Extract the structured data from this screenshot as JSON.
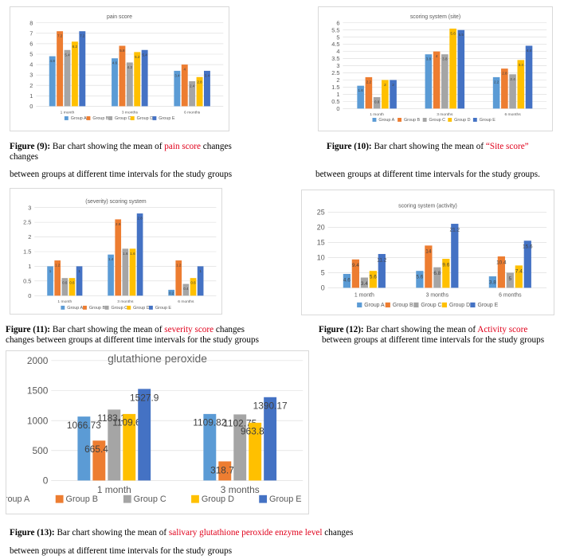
{
  "colors": {
    "group_a": "#5b9bd5",
    "group_b": "#ed7d31",
    "group_c": "#a5a5a5",
    "group_d": "#ffc000",
    "group_e": "#4472c4",
    "highlight": "#e0001b"
  },
  "chart_data": [
    {
      "id": "fig9",
      "type": "bar",
      "title": "pain score",
      "categories": [
        "1 month",
        "3 months",
        "6 months"
      ],
      "ylim": [
        0,
        8
      ],
      "yticks": [
        0,
        1,
        2,
        3,
        4,
        5,
        6,
        7,
        8
      ],
      "grid": true,
      "legend_position": "bottom",
      "series": [
        {
          "name": "Group A",
          "values": [
            4.8,
            4.6,
            3.4
          ],
          "labels": [
            "4.8",
            "4.6",
            "3.4"
          ]
        },
        {
          "name": "Group B",
          "values": [
            7.2,
            5.8,
            4
          ],
          "labels": [
            "7.2",
            "5.8",
            "4"
          ]
        },
        {
          "name": "Group C",
          "values": [
            5.4,
            4.2,
            2.4
          ],
          "labels": [
            "5.4",
            "4.2",
            "2.4"
          ]
        },
        {
          "name": "Group D",
          "values": [
            6.2,
            5.2,
            2.8
          ],
          "labels": [
            "6.2",
            "5.2",
            "2.8"
          ]
        },
        {
          "name": "Group E",
          "values": [
            7.2,
            5.4,
            3.4
          ],
          "labels": [
            "7.2",
            "5.4",
            "3.4"
          ]
        }
      ]
    },
    {
      "id": "fig10",
      "type": "bar",
      "title": "scoring system (site)",
      "categories": [
        "1 month",
        "3 months",
        "6 months"
      ],
      "ylim": [
        0,
        6
      ],
      "yticks": [
        0,
        0.5,
        1,
        1.5,
        2,
        2.5,
        3,
        3.5,
        4,
        4.5,
        5,
        5.5,
        6
      ],
      "grid": true,
      "legend_position": "bottom",
      "series": [
        {
          "name": "Group A",
          "values": [
            1.6,
            3.8,
            2.2
          ],
          "labels": [
            "1.6",
            "3.8",
            "2.2"
          ]
        },
        {
          "name": "Group B",
          "values": [
            2.2,
            4,
            2.8
          ],
          "labels": [
            "2.2",
            "4",
            "2.8"
          ]
        },
        {
          "name": "Group C",
          "values": [
            0.8,
            3.8,
            2.4
          ],
          "labels": [
            "0.8",
            "3.8",
            "2.4"
          ]
        },
        {
          "name": "Group D",
          "values": [
            2,
            5.6,
            3.4
          ],
          "labels": [
            "2",
            "5.6",
            "3.4"
          ]
        },
        {
          "name": "Group E",
          "values": [
            2,
            5.5,
            4.4
          ],
          "labels": [
            "2",
            "5.5",
            "4.4"
          ]
        }
      ]
    },
    {
      "id": "fig11",
      "type": "bar",
      "title": "(severity) scoring system",
      "categories": [
        "1 month",
        "3 months",
        "6 months"
      ],
      "ylim": [
        0,
        3
      ],
      "yticks": [
        0,
        0.5,
        1,
        1.5,
        2,
        2.5,
        3
      ],
      "grid": true,
      "legend_position": "bottom",
      "series": [
        {
          "name": "Group A",
          "values": [
            1,
            1.4,
            0.2
          ],
          "labels": [
            "1",
            "1.4",
            "0.2"
          ]
        },
        {
          "name": "Group B",
          "values": [
            1.2,
            2.6,
            1.2
          ],
          "labels": [
            "1.2",
            "2.6",
            "1.2"
          ]
        },
        {
          "name": "Group C",
          "values": [
            0.6,
            1.6,
            0.4
          ],
          "labels": [
            "0.6",
            "1.6",
            "0.4"
          ]
        },
        {
          "name": "Group D",
          "values": [
            0.6,
            1.6,
            0.6
          ],
          "labels": [
            "0.6",
            "1.6",
            "0.6"
          ]
        },
        {
          "name": "Group E",
          "values": [
            1,
            2.8,
            1
          ],
          "labels": [
            "1",
            "2.8",
            "1"
          ]
        }
      ]
    },
    {
      "id": "fig12",
      "type": "bar",
      "title": "scoring system (activity)",
      "categories": [
        "1 month",
        "3 months",
        "6 months"
      ],
      "ylim": [
        0,
        25
      ],
      "yticks": [
        0,
        5,
        10,
        15,
        20,
        25
      ],
      "grid": true,
      "legend_position": "bottom",
      "series": [
        {
          "name": "Group A",
          "values": [
            4.6,
            5.6,
            3.8
          ],
          "labels": [
            "4.6",
            "5.6",
            "3.8"
          ]
        },
        {
          "name": "Group B",
          "values": [
            9.4,
            14,
            10.4
          ],
          "labels": [
            "9.4",
            "14",
            "10.4"
          ]
        },
        {
          "name": "Group C",
          "values": [
            3.4,
            6.8,
            5
          ],
          "labels": [
            "3.4",
            "6.8",
            "5"
          ]
        },
        {
          "name": "Group D",
          "values": [
            5.6,
            9.6,
            7.4
          ],
          "labels": [
            "5.6",
            "9.6",
            "7.4"
          ]
        },
        {
          "name": "Group E",
          "values": [
            11.2,
            21.2,
            15.6
          ],
          "labels": [
            "11.2",
            "21.2",
            "15.6"
          ]
        }
      ]
    },
    {
      "id": "fig13",
      "type": "bar",
      "title": "glutathione peroxide",
      "categories": [
        "1 month",
        "3 months"
      ],
      "ylim": [
        0,
        2000
      ],
      "yticks": [
        0,
        500,
        1000,
        1500,
        2000
      ],
      "grid": true,
      "legend_position": "bottom",
      "series": [
        {
          "name": "Group A",
          "values": [
            1066.73,
            1109.82
          ],
          "labels": [
            "1066.73",
            "1109.82"
          ]
        },
        {
          "name": "Group B",
          "values": [
            665.48,
            318.73
          ],
          "labels": [
            "665.48",
            "318.73"
          ]
        },
        {
          "name": "Group C",
          "values": [
            1183.17,
            1102.75
          ],
          "labels": [
            "1183.17",
            "1102.75"
          ]
        },
        {
          "name": "Group D",
          "values": [
            1109.64,
            963.89
          ],
          "labels": [
            "1109.64",
            "963.89"
          ]
        },
        {
          "name": "Group E",
          "values": [
            1527.9,
            1390.17
          ],
          "labels": [
            "1527.9",
            "1390.17"
          ]
        }
      ]
    }
  ],
  "captions": {
    "fig9": {
      "label": "Figure (9):",
      "pre": " Bar chart showing the mean of ",
      "highlight": "pain score",
      "post": " changes",
      "line2": "changes",
      "continuation": "between groups at different time intervals for the study groups"
    },
    "fig10": {
      "label": "Figure (10):",
      "pre": " Bar chart showing the mean of ",
      "highlight": "“Site score”",
      "post": "",
      "continuation": "between groups at different time intervals for the study groups."
    },
    "fig11": {
      "label": "Figure (11):",
      "pre": " Bar chart showing the mean of ",
      "highlight": "severity score",
      "post": " changes",
      "line2": "changes between groups at different time intervals for the study groups"
    },
    "fig12": {
      "label": "Figure (12):",
      "pre": " Bar chart showing the mean of ",
      "highlight": "Activity score",
      "post": "",
      "line2": "between groups at different time intervals for the study groups"
    },
    "fig13": {
      "label": "Figure (13):",
      "pre": " Bar chart showing the mean of ",
      "highlight": "salivary glutathione peroxide enzyme level",
      "post": " changes",
      "continuation": "between groups at different time intervals for the study groups"
    }
  }
}
